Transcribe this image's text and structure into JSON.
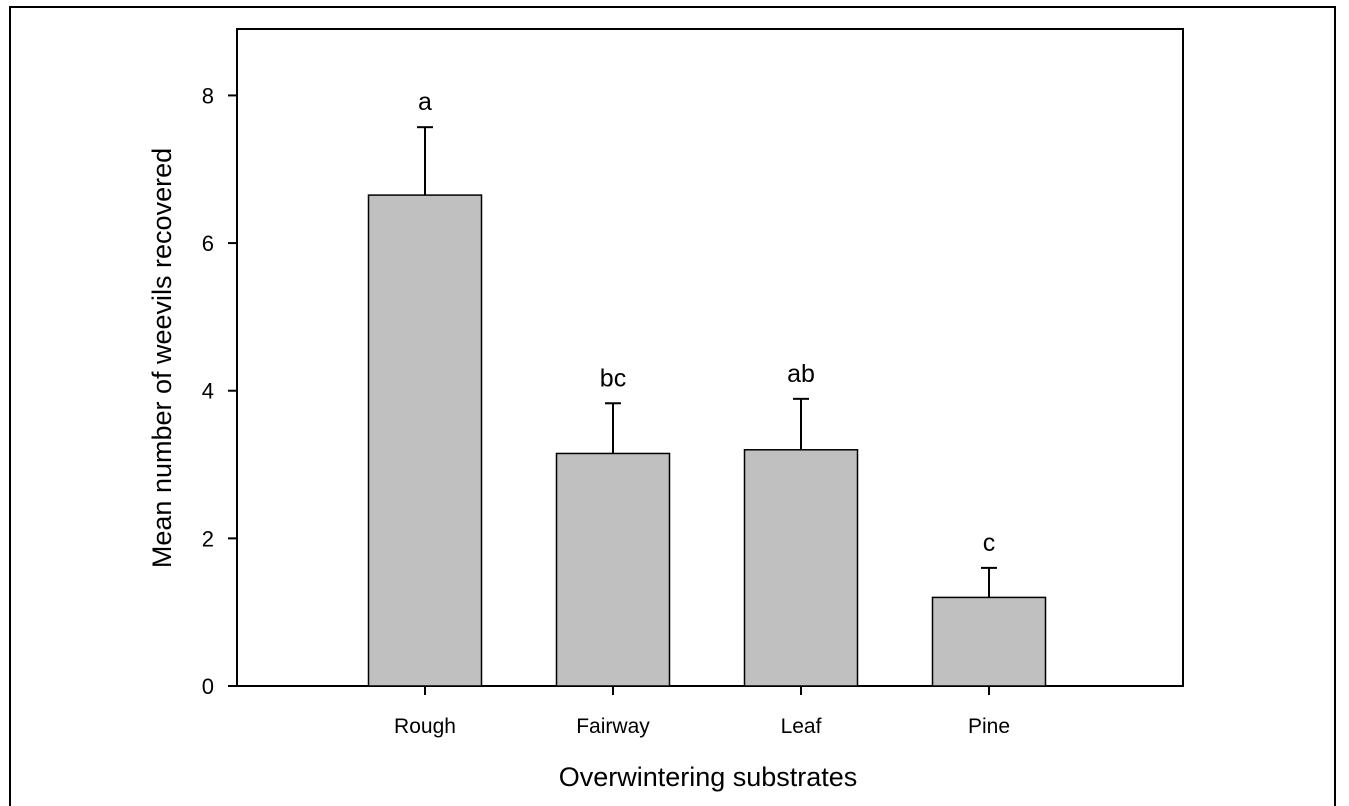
{
  "chart_data": {
    "type": "bar",
    "categories": [
      "Rough",
      "Fairway",
      "Leaf",
      "Pine"
    ],
    "values": [
      6.65,
      3.15,
      3.2,
      1.2
    ],
    "error_upper": [
      7.57,
      3.83,
      3.89,
      1.6
    ],
    "significance_labels": [
      "a",
      "bc",
      "ab",
      "c"
    ],
    "title": "",
    "xlabel": "Overwintering substrates",
    "ylabel": "Mean number of weevils recovered",
    "ylim": [
      0,
      8.9
    ],
    "yticks": [
      0,
      2,
      4,
      6,
      8
    ],
    "grid": false,
    "legend": "none",
    "bar_color": "#c0c0c0",
    "edge_color": "#000000"
  }
}
